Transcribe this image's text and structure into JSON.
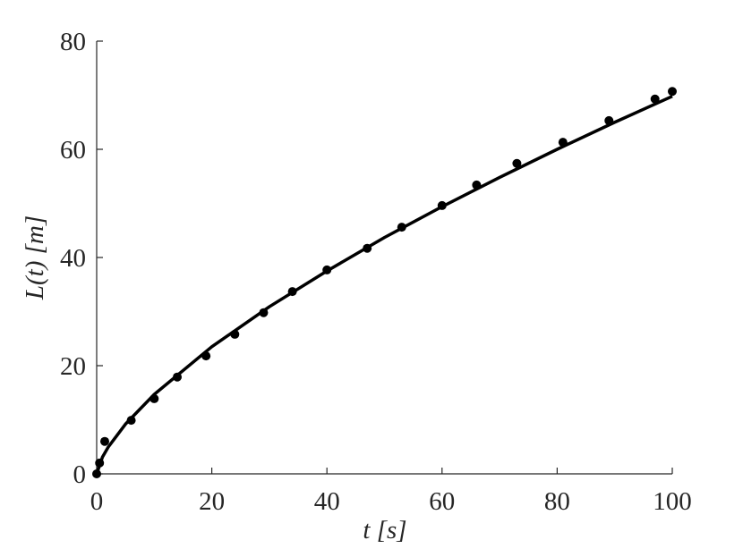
{
  "chart_data": {
    "type": "scatter",
    "xlabel": "t [s]",
    "ylabel": "L(t) [m]",
    "xlim": [
      0,
      100
    ],
    "xticks": [
      0,
      20,
      40,
      60,
      80,
      100
    ],
    "ylim": [
      0,
      80
    ],
    "yticks": [
      0,
      20,
      40,
      60,
      80
    ],
    "series": [
      {
        "type": "scatter",
        "color": "#000000",
        "x": [
          0,
          0.5,
          1.4,
          6,
          10,
          14,
          19,
          24,
          29,
          34,
          40,
          47,
          53,
          60,
          66,
          73,
          81,
          89,
          97,
          100
        ],
        "values": [
          0,
          2,
          6,
          9.9,
          13.9,
          17.9,
          21.8,
          25.8,
          29.8,
          33.7,
          37.7,
          41.7,
          45.6,
          49.6,
          53.4,
          57.4,
          61.3,
          65.3,
          69.3,
          70.7
        ]
      },
      {
        "type": "line",
        "color": "#000000",
        "x": [
          0,
          1,
          2,
          5,
          10,
          20,
          30,
          40,
          50,
          60,
          70,
          80,
          90,
          100
        ],
        "values": [
          0,
          3.09,
          4.94,
          9.19,
          14.69,
          23.5,
          30.9,
          37.5,
          43.7,
          49.4,
          54.8,
          60.0,
          65.0,
          69.8
        ]
      }
    ]
  }
}
